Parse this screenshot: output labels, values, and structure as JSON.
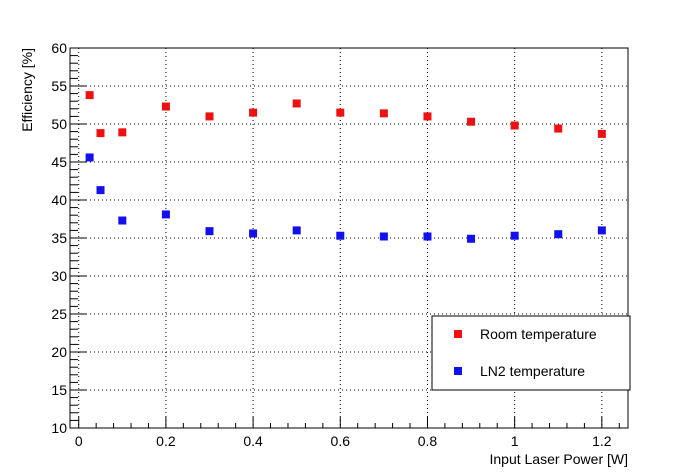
{
  "chart_data": {
    "type": "scatter",
    "xlabel": "Input Laser Power [W]",
    "ylabel": "Efficiency [%]",
    "xlim": [
      -0.02,
      1.26
    ],
    "ylim": [
      10,
      60
    ],
    "x_ticks": [
      0,
      0.2,
      0.4,
      0.6,
      0.8,
      1,
      1.2
    ],
    "x_tick_labels": [
      "0",
      "0.2",
      "0.4",
      "0.6",
      "0.8",
      "1",
      "1.2"
    ],
    "y_ticks": [
      10,
      15,
      20,
      25,
      30,
      35,
      40,
      45,
      50,
      55,
      60
    ],
    "y_tick_labels": [
      "10",
      "15",
      "20",
      "25",
      "30",
      "35",
      "40",
      "45",
      "50",
      "55",
      "60"
    ],
    "grid": true,
    "legend_position": "bottom-right",
    "series": [
      {
        "name": "Room temperature",
        "color": "#ee1111",
        "marker": "square",
        "x": [
          0.025,
          0.05,
          0.1,
          0.2,
          0.3,
          0.4,
          0.5,
          0.6,
          0.7,
          0.8,
          0.9,
          1.0,
          1.1,
          1.2
        ],
        "y": [
          53.8,
          48.8,
          48.9,
          52.3,
          51.0,
          51.5,
          52.7,
          51.5,
          51.4,
          51.0,
          50.3,
          49.8,
          49.4,
          48.7
        ]
      },
      {
        "name": "LN2 temperature",
        "color": "#1111ee",
        "marker": "square",
        "x": [
          0.025,
          0.05,
          0.1,
          0.2,
          0.3,
          0.4,
          0.5,
          0.6,
          0.7,
          0.8,
          0.9,
          1.0,
          1.1,
          1.2
        ],
        "y": [
          45.6,
          41.3,
          37.3,
          38.1,
          35.9,
          35.6,
          36.0,
          35.3,
          35.2,
          35.2,
          34.9,
          35.3,
          35.5,
          36.0
        ]
      }
    ]
  }
}
